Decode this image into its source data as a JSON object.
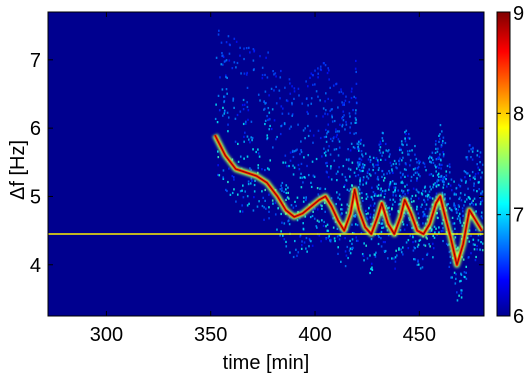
{
  "chart_data": {
    "type": "heatmap",
    "title": "",
    "xlabel": "time [min]",
    "ylabel": "Δf [Hz]",
    "xlim": [
      272,
      481
    ],
    "ylim": [
      3.25,
      7.7
    ],
    "x_ticks": [
      300,
      350,
      400,
      450
    ],
    "y_ticks": [
      4,
      5,
      6,
      7
    ],
    "colorbar": {
      "range": [
        6,
        9
      ],
      "ticks": [
        6,
        7,
        8,
        9
      ],
      "colormap": "jet",
      "colors": [
        "#00008f",
        "#0000ff",
        "#00ffff",
        "#ffff00",
        "#ff0000",
        "#800000"
      ]
    },
    "background_color": "#00008f",
    "series": [
      {
        "description_key": "constant_band",
        "points": [
          [
            272,
            4.45
          ],
          [
            481,
            4.45
          ]
        ],
        "intensity": 7.4
      },
      {
        "description_key": "drifting_ridge",
        "points": [
          [
            352,
            5.9
          ],
          [
            357,
            5.6
          ],
          [
            362,
            5.4
          ],
          [
            367,
            5.35
          ],
          [
            372,
            5.3
          ],
          [
            377,
            5.2
          ],
          [
            382,
            5.0
          ],
          [
            386,
            4.8
          ],
          [
            390,
            4.7
          ],
          [
            394,
            4.75
          ],
          [
            398,
            4.85
          ],
          [
            402,
            4.95
          ],
          [
            405,
            5.0
          ],
          [
            408,
            4.85
          ],
          [
            411,
            4.65
          ],
          [
            414,
            4.5
          ],
          [
            417,
            4.75
          ],
          [
            419,
            5.1
          ],
          [
            421,
            4.8
          ],
          [
            424,
            4.55
          ],
          [
            427,
            4.45
          ],
          [
            430,
            4.7
          ],
          [
            432,
            4.9
          ],
          [
            435,
            4.6
          ],
          [
            438,
            4.45
          ],
          [
            441,
            4.7
          ],
          [
            443,
            4.95
          ],
          [
            446,
            4.75
          ],
          [
            449,
            4.5
          ],
          [
            452,
            4.45
          ],
          [
            455,
            4.6
          ],
          [
            458,
            4.9
          ],
          [
            460,
            5.0
          ],
          [
            462,
            4.75
          ],
          [
            465,
            4.4
          ],
          [
            468,
            4.0
          ],
          [
            471,
            4.3
          ],
          [
            474,
            4.8
          ],
          [
            477,
            4.65
          ],
          [
            480,
            4.5
          ]
        ],
        "intensity": 8.7
      }
    ],
    "grid": false,
    "legend": "none"
  }
}
